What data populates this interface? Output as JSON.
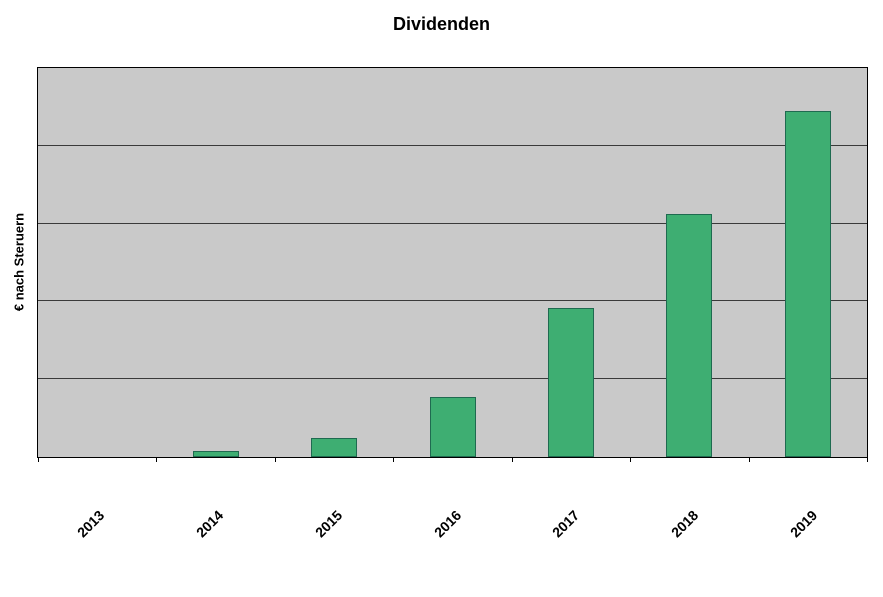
{
  "chart_data": {
    "type": "bar",
    "title": "Dividenden",
    "xlabel": "",
    "ylabel": "€ nach Steruern",
    "categories": [
      "2013",
      "2014",
      "2015",
      "2016",
      "2017",
      "2018",
      "2019"
    ],
    "values": [
      0,
      0.08,
      0.25,
      0.77,
      1.92,
      3.13,
      4.45
    ],
    "ylim": [
      0,
      5
    ],
    "gridline_step": 1,
    "grid": true,
    "legend": "none",
    "y_tick_labels_visible": false,
    "colors": {
      "bar_fill": "#3eae72",
      "bar_border": "#1f6a50",
      "plot_bg": "#c9c9c9",
      "gridline": "#3a3a3a",
      "axis": "#000000",
      "text": "#000000",
      "background": "#ffffff"
    }
  }
}
